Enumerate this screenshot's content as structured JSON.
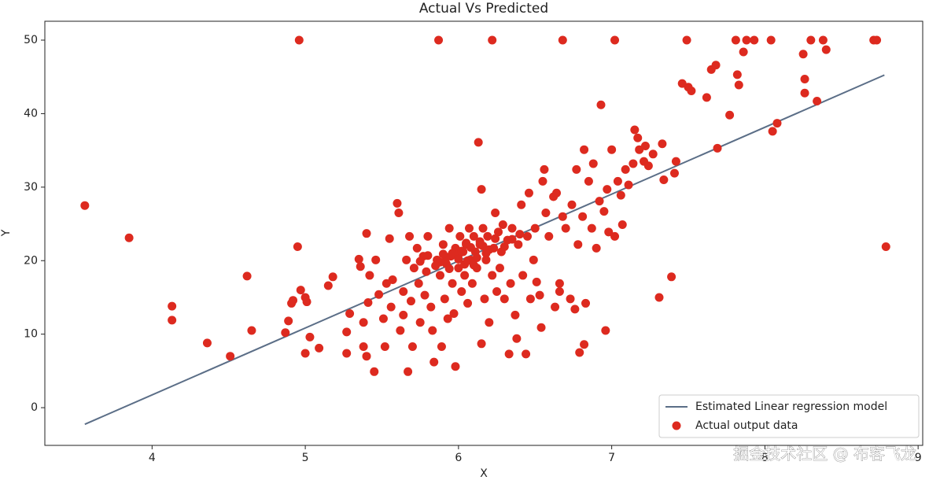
{
  "chart_data": {
    "type": "scatter",
    "title": "Actual Vs Predicted",
    "x_label": "X",
    "y_label": "Y",
    "annotation": "掘金技术社区 @ 布客飞龙",
    "xlim": [
      3.3,
      9.03
    ],
    "ylim": [
      -5.13,
      52.57
    ],
    "xticks": [
      4,
      5,
      6,
      7,
      8,
      9
    ],
    "yticks": [
      0,
      10,
      20,
      30,
      40,
      50
    ],
    "legend": "lower right",
    "series": [
      {
        "name": "Estimated Linear regression model",
        "type": "line",
        "color": "#5b6e87",
        "x": [
          3.561,
          8.78
        ],
        "values": [
          -2.26,
          45.25
        ]
      },
      {
        "name": "Actual output data",
        "type": "scatter",
        "color": "#dd2a1f",
        "x": [
          3.561,
          3.85,
          4.13,
          4.13,
          4.36,
          4.51,
          4.62,
          4.65,
          4.87,
          4.89,
          4.91,
          4.92,
          4.95,
          4.96,
          4.97,
          5.0,
          5.01,
          5.0,
          5.03,
          5.09,
          5.15,
          5.18,
          5.27,
          5.27,
          5.29,
          5.35,
          5.36,
          5.38,
          5.38,
          5.4,
          5.4,
          5.41,
          5.42,
          5.45,
          5.46,
          5.48,
          5.51,
          5.52,
          5.53,
          5.55,
          5.56,
          5.57,
          5.6,
          5.61,
          5.62,
          5.64,
          5.64,
          5.66,
          5.67,
          5.68,
          5.69,
          5.7,
          5.71,
          5.73,
          5.74,
          5.75,
          5.77,
          5.78,
          5.79,
          5.8,
          5.82,
          5.83,
          5.84,
          5.86,
          5.87,
          5.88,
          5.89,
          5.9,
          5.91,
          5.92,
          5.93,
          5.94,
          5.95,
          5.96,
          5.97,
          5.98,
          5.98,
          6.0,
          6.01,
          6.02,
          6.03,
          6.04,
          6.05,
          6.06,
          6.07,
          6.08,
          6.09,
          6.1,
          6.11,
          6.12,
          6.13,
          6.14,
          6.15,
          6.15,
          6.16,
          6.17,
          6.18,
          6.19,
          6.2,
          6.22,
          6.22,
          6.23,
          6.24,
          6.25,
          6.26,
          6.27,
          6.28,
          6.29,
          6.3,
          6.32,
          6.33,
          6.34,
          6.35,
          6.37,
          6.38,
          6.39,
          6.41,
          6.42,
          6.44,
          6.45,
          6.46,
          6.47,
          6.49,
          6.5,
          6.51,
          6.53,
          6.54,
          6.55,
          6.56,
          6.57,
          6.59,
          6.62,
          6.63,
          6.64,
          6.66,
          6.66,
          6.68,
          6.68,
          6.7,
          6.73,
          6.74,
          6.76,
          6.77,
          6.78,
          6.79,
          6.81,
          6.82,
          6.82,
          6.83,
          6.85,
          6.87,
          6.88,
          6.9,
          6.92,
          6.93,
          6.95,
          6.96,
          6.97,
          6.98,
          7.0,
          7.02,
          7.02,
          7.04,
          7.06,
          7.07,
          7.09,
          7.11,
          7.14,
          7.15,
          7.17,
          7.18,
          7.21,
          7.22,
          7.24,
          7.27,
          7.31,
          7.33,
          7.34,
          7.39,
          7.41,
          7.42,
          7.46,
          7.49,
          7.5,
          7.52,
          7.62,
          7.65,
          7.68,
          7.69,
          7.77,
          7.81,
          7.82,
          7.83,
          7.86,
          7.88,
          7.93,
          8.04,
          8.05,
          8.08,
          8.25,
          8.26,
          8.26,
          8.3,
          8.34,
          8.38,
          8.4,
          8.71,
          8.73,
          8.79,
          5.92,
          5.96,
          6.0,
          6.04,
          6.08,
          6.12,
          6.16,
          6.2,
          6.24,
          5.88,
          5.94,
          6.02,
          6.06,
          6.1,
          6.14,
          6.18,
          5.85,
          5.9,
          6.0,
          6.05,
          6.3,
          6.35,
          6.4,
          5.8,
          5.75
        ],
        "values": [
          27.5,
          23.1,
          13.8,
          11.9,
          8.8,
          7.0,
          17.9,
          10.5,
          10.2,
          11.8,
          14.2,
          14.6,
          21.9,
          50,
          16.0,
          15.0,
          14.4,
          7.4,
          9.6,
          8.1,
          16.6,
          17.8,
          10.3,
          7.4,
          12.8,
          20.2,
          19.2,
          8.3,
          11.6,
          23.7,
          7.0,
          14.3,
          18.0,
          4.9,
          20.1,
          15.4,
          12.1,
          8.3,
          16.9,
          23.0,
          13.7,
          17.4,
          27.8,
          26.5,
          10.5,
          12.6,
          15.8,
          20.1,
          4.9,
          23.3,
          14.5,
          8.3,
          19.0,
          21.7,
          16.9,
          11.6,
          20.6,
          15.3,
          18.5,
          23.3,
          13.7,
          10.5,
          6.2,
          20.1,
          50,
          18.0,
          8.3,
          22.2,
          14.8,
          19.6,
          12.1,
          24.4,
          20.6,
          16.9,
          12.8,
          5.6,
          21.7,
          19.0,
          23.3,
          15.8,
          21.2,
          18.0,
          22.2,
          14.2,
          24.4,
          20.1,
          16.9,
          23.3,
          21.2,
          19.0,
          36.1,
          22.2,
          8.7,
          29.7,
          24.4,
          14.8,
          20.1,
          23.3,
          11.6,
          50,
          18.0,
          21.7,
          26.5,
          15.8,
          23.9,
          19.0,
          21.2,
          24.9,
          14.8,
          22.8,
          7.3,
          16.9,
          24.4,
          12.6,
          9.4,
          22.2,
          27.6,
          18.0,
          7.3,
          23.3,
          29.2,
          14.8,
          20.1,
          24.4,
          17.1,
          15.3,
          10.9,
          30.8,
          32.4,
          26.5,
          23.3,
          28.7,
          13.7,
          29.2,
          16.9,
          15.8,
          50,
          26.0,
          24.4,
          14.8,
          27.6,
          13.4,
          32.4,
          22.2,
          7.5,
          26.0,
          35.1,
          8.6,
          14.2,
          30.8,
          24.4,
          33.2,
          21.7,
          28.1,
          41.2,
          26.7,
          10.5,
          29.7,
          23.9,
          35.1,
          50,
          23.3,
          30.8,
          28.9,
          24.9,
          32.4,
          30.3,
          33.2,
          37.8,
          36.7,
          35.1,
          33.5,
          35.6,
          32.9,
          34.5,
          15.0,
          35.9,
          31.0,
          17.8,
          31.9,
          33.5,
          44.1,
          50,
          43.6,
          43.1,
          42.2,
          46.0,
          46.6,
          35.3,
          39.8,
          50,
          45.3,
          43.9,
          48.4,
          50,
          50,
          50,
          37.6,
          38.7,
          48.1,
          44.7,
          42.8,
          50,
          41.7,
          50,
          48.7,
          50,
          50,
          21.9,
          20.5,
          21.0,
          20.8,
          19.5,
          21.8,
          20.4,
          22.0,
          21.5,
          23.0,
          19.8,
          18.9,
          21.3,
          20.0,
          19.4,
          22.6,
          21.0,
          19.3,
          20.9,
          20.2,
          22.4,
          21.9,
          22.9,
          23.6,
          20.7,
          19.9
        ]
      }
    ]
  }
}
